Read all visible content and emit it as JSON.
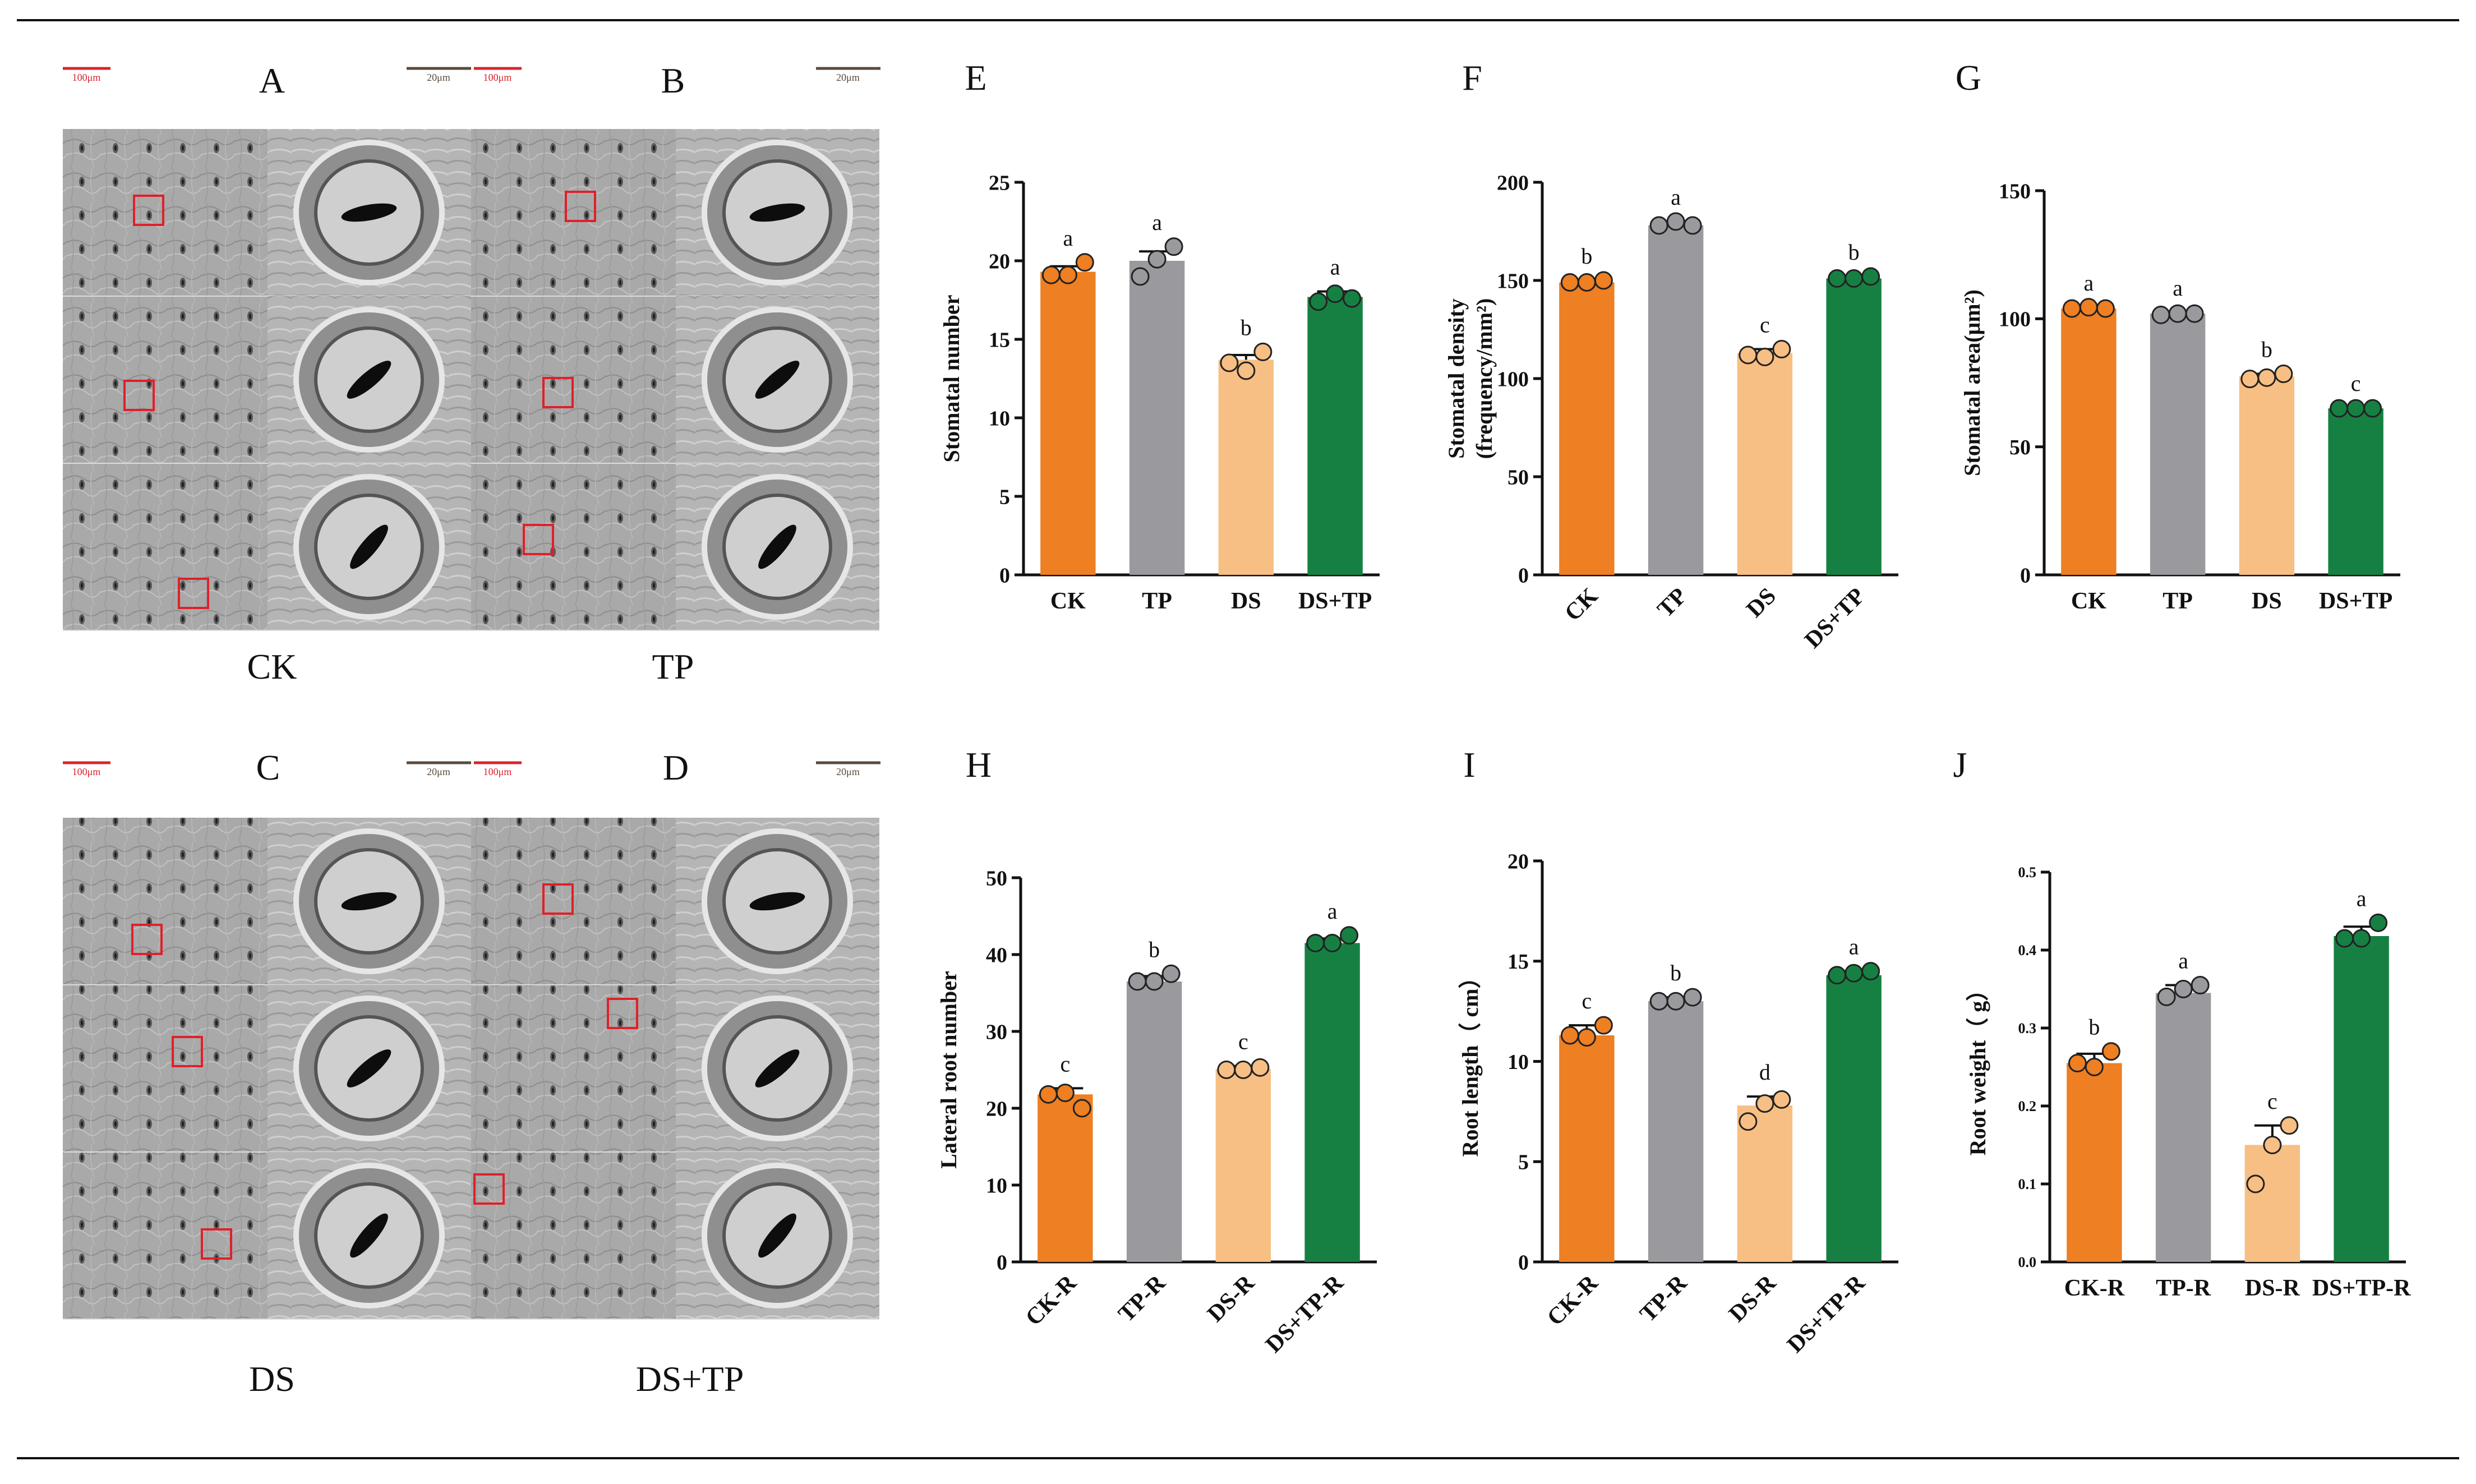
{
  "colors": {
    "CK": "#ee7f22",
    "TP": "#9a9a9e",
    "DS": "#f7bf83",
    "DSTP": "#168042",
    "scale_red": "#d9232d",
    "scale_brown": "#5b4a3a",
    "sem_bg": "#a7a7a7",
    "marker": "#e0202a"
  },
  "micrographs": [
    {
      "letter": "A",
      "label": "CK",
      "scale_overview": "100μm",
      "scale_zoom": "20μm"
    },
    {
      "letter": "B",
      "label": "TP",
      "scale_overview": "100μm",
      "scale_zoom": "20μm"
    },
    {
      "letter": "C",
      "label": "DS",
      "scale_overview": "100μm",
      "scale_zoom": "20μm"
    },
    {
      "letter": "D",
      "label": "DS+TP",
      "scale_overview": "100μm",
      "scale_zoom": "20μm"
    }
  ],
  "chart_data": [
    {
      "panel": "E",
      "type": "bar",
      "title": "",
      "ylabel": "Stomatal number",
      "ylim": [
        0,
        25
      ],
      "yticks": [
        0,
        5,
        10,
        15,
        20,
        25
      ],
      "tick_rotated": false,
      "categories": [
        "CK",
        "TP",
        "DS",
        "DS+TP"
      ],
      "values": [
        19.3,
        20.0,
        13.7,
        17.7
      ],
      "errors": [
        0.35,
        0.6,
        0.3,
        0.35
      ],
      "points": [
        [
          19.1,
          19.1,
          19.9
        ],
        [
          19.0,
          20.1,
          20.9
        ],
        [
          13.5,
          13.0,
          14.2
        ],
        [
          17.4,
          17.9,
          17.6
        ]
      ],
      "letters": [
        "a",
        "a",
        "b",
        "a"
      ]
    },
    {
      "panel": "F",
      "type": "bar",
      "title": "",
      "ylabel": "Stomatal density",
      "ylabel2": "(frequency/mm²)",
      "ylim": [
        0,
        200
      ],
      "yticks": [
        0,
        50,
        100,
        150,
        200
      ],
      "tick_rotated": true,
      "categories": [
        "CK",
        "TP",
        "DS",
        "DS+TP"
      ],
      "values": [
        149,
        178,
        113,
        151
      ],
      "errors": [
        1,
        1.5,
        2,
        1
      ],
      "points": [
        [
          149,
          149,
          150
        ],
        [
          178,
          180,
          178
        ],
        [
          112,
          111,
          115
        ],
        [
          151,
          151,
          152
        ]
      ],
      "letters": [
        "b",
        "a",
        "c",
        "b"
      ]
    },
    {
      "panel": "G",
      "type": "bar",
      "title": "",
      "ylabel": "Stomatal area(μm²)",
      "ylim": [
        0,
        150
      ],
      "yticks": [
        0,
        50,
        100,
        150
      ],
      "tick_rotated": false,
      "categories": [
        "CK",
        "TP",
        "DS",
        "DS+TP"
      ],
      "values": [
        104,
        102,
        77.5,
        65
      ],
      "errors": [
        0.5,
        0.5,
        1,
        0.3
      ],
      "points": [
        [
          104,
          104.5,
          104
        ],
        [
          101.5,
          102,
          102
        ],
        [
          76.5,
          77,
          78.5
        ],
        [
          65,
          65,
          65
        ]
      ],
      "letters": [
        "a",
        "a",
        "b",
        "c"
      ]
    },
    {
      "panel": "H",
      "type": "bar",
      "title": "",
      "ylabel": "Lateral root number",
      "ylim": [
        0,
        50
      ],
      "yticks": [
        0,
        10,
        20,
        30,
        40,
        50
      ],
      "tick_rotated": true,
      "categories": [
        "CK-R",
        "TP-R",
        "DS-R",
        "DS+TP-R"
      ],
      "values": [
        21.8,
        36.5,
        25.1,
        41.5
      ],
      "errors": [
        0.8,
        0.7,
        0.4,
        0.6
      ],
      "points": [
        [
          21.8,
          22.0,
          20.0
        ],
        [
          36.5,
          36.5,
          37.5
        ],
        [
          25.0,
          25.0,
          25.3
        ],
        [
          41.5,
          41.5,
          42.5
        ]
      ],
      "letters": [
        "c",
        "b",
        "c",
        "a"
      ]
    },
    {
      "panel": "I",
      "type": "bar",
      "title": "",
      "ylabel": "Root length（ cm）",
      "ylim": [
        0,
        20
      ],
      "yticks": [
        0,
        5,
        10,
        15,
        20
      ],
      "tick_rotated": true,
      "categories": [
        "CK-R",
        "TP-R",
        "DS-R",
        "DS+TP-R"
      ],
      "values": [
        11.3,
        13.0,
        7.8,
        14.3
      ],
      "errors": [
        0.5,
        0.2,
        0.45,
        0.2
      ],
      "points": [
        [
          11.3,
          11.2,
          11.8
        ],
        [
          13.0,
          13.0,
          13.2
        ],
        [
          7.0,
          7.9,
          8.1
        ],
        [
          14.3,
          14.4,
          14.5
        ]
      ],
      "letters": [
        "c",
        "b",
        "d",
        "a"
      ]
    },
    {
      "panel": "J",
      "type": "bar",
      "title": "",
      "ylabel": "Root weight（ g）",
      "ylim": [
        0,
        0.5
      ],
      "yticks": [
        0.0,
        0.1,
        0.2,
        0.3,
        0.4,
        0.5
      ],
      "tick_rotated": false,
      "tick_decimals": 1,
      "categories": [
        "CK-R",
        "TP-R",
        "DS-R",
        "DS+TP-R"
      ],
      "values": [
        0.255,
        0.345,
        0.15,
        0.418
      ],
      "errors": [
        0.012,
        0.01,
        0.025,
        0.012
      ],
      "points": [
        [
          0.255,
          0.25,
          0.27
        ],
        [
          0.34,
          0.35,
          0.355
        ],
        [
          0.1,
          0.15,
          0.175
        ],
        [
          0.415,
          0.415,
          0.435
        ]
      ],
      "letters": [
        "b",
        "a",
        "c",
        "a"
      ]
    }
  ]
}
